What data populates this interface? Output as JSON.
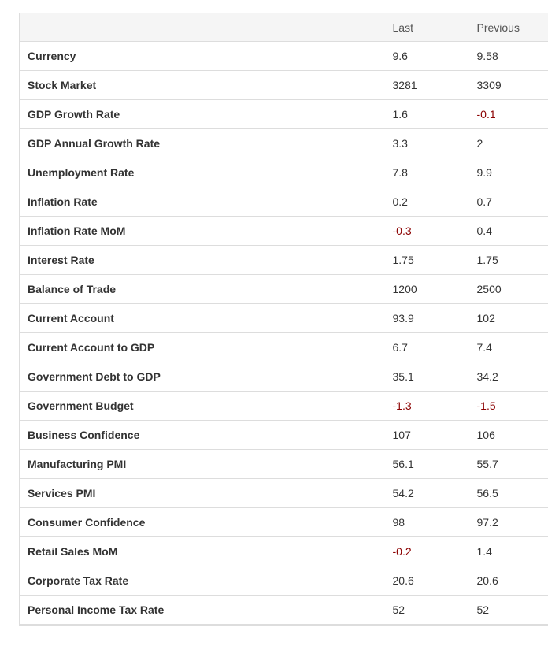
{
  "table": {
    "headers": [
      "",
      "Last",
      "Previous"
    ],
    "rows": [
      {
        "name": "Currency",
        "last": "9.6",
        "previous": "9.58"
      },
      {
        "name": "Stock Market",
        "last": "3281",
        "previous": "3309"
      },
      {
        "name": "GDP Growth Rate",
        "last": "1.6",
        "previous": "-0.1"
      },
      {
        "name": "GDP Annual Growth Rate",
        "last": "3.3",
        "previous": "2"
      },
      {
        "name": "Unemployment Rate",
        "last": "7.8",
        "previous": "9.9"
      },
      {
        "name": "Inflation Rate",
        "last": "0.2",
        "previous": "0.7"
      },
      {
        "name": "Inflation Rate MoM",
        "last": "-0.3",
        "previous": "0.4"
      },
      {
        "name": "Interest Rate",
        "last": "1.75",
        "previous": "1.75"
      },
      {
        "name": "Balance of Trade",
        "last": "1200",
        "previous": "2500"
      },
      {
        "name": "Current Account",
        "last": "93.9",
        "previous": "102"
      },
      {
        "name": "Current Account to GDP",
        "last": "6.7",
        "previous": "7.4"
      },
      {
        "name": "Government Debt to GDP",
        "last": "35.1",
        "previous": "34.2"
      },
      {
        "name": "Government Budget",
        "last": "-1.3",
        "previous": "-1.5"
      },
      {
        "name": "Business Confidence",
        "last": "107",
        "previous": "106"
      },
      {
        "name": "Manufacturing PMI",
        "last": "56.1",
        "previous": "55.7"
      },
      {
        "name": "Services PMI",
        "last": "54.2",
        "previous": "56.5"
      },
      {
        "name": "Consumer Confidence",
        "last": "98",
        "previous": "97.2"
      },
      {
        "name": "Retail Sales MoM",
        "last": "-0.2",
        "previous": "1.4"
      },
      {
        "name": "Corporate Tax Rate",
        "last": "20.6",
        "previous": "20.6"
      },
      {
        "name": "Personal Income Tax Rate",
        "last": "52",
        "previous": "52"
      }
    ]
  },
  "colors": {
    "negative_value": "#8b0000",
    "header_background": "#f5f5f5",
    "border": "#dddddd"
  }
}
